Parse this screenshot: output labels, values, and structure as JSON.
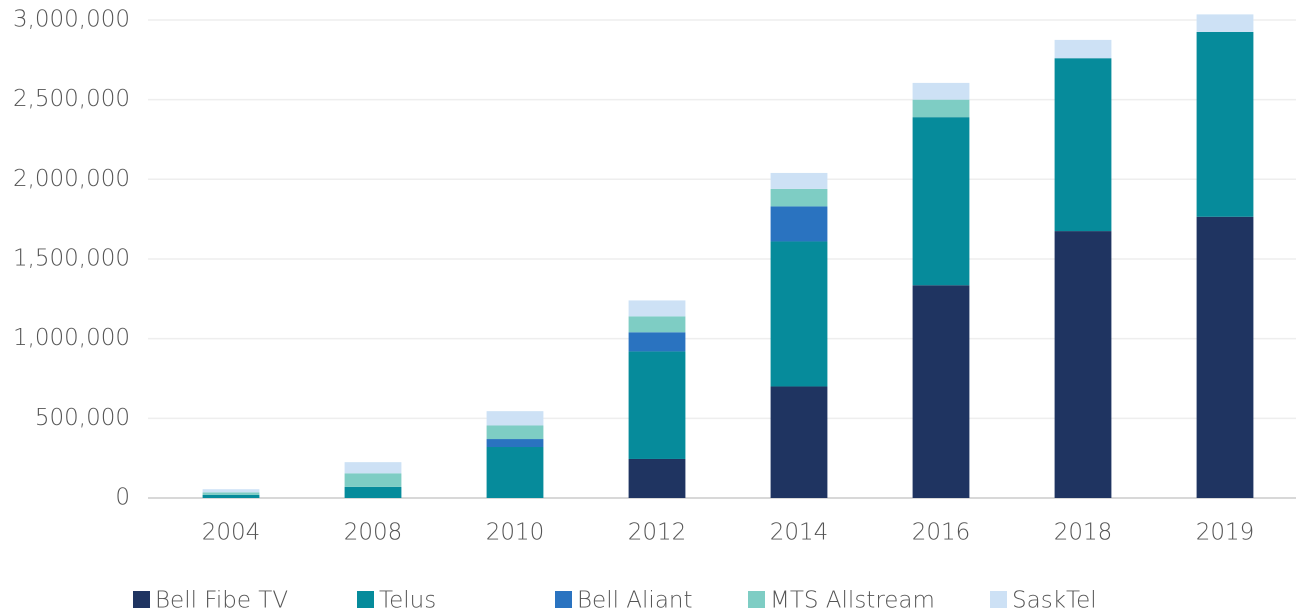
{
  "chart_data": {
    "type": "stacked_bar",
    "categories": [
      "2004",
      "2008",
      "2010",
      "2012",
      "2014",
      "2016",
      "2018",
      "2019"
    ],
    "series": [
      {
        "name": "Bell Fibe TV",
        "color": "#1f3461",
        "values": [
          0,
          0,
          0,
          245000,
          700000,
          1335000,
          1675000,
          1765000
        ]
      },
      {
        "name": "Telus",
        "color": "#068b9b",
        "values": [
          20000,
          70000,
          320000,
          675000,
          910000,
          1055000,
          1085000,
          1160000
        ]
      },
      {
        "name": "Bell Aliant",
        "color": "#2a73c0",
        "values": [
          0,
          0,
          50000,
          120000,
          220000,
          0,
          0,
          0
        ]
      },
      {
        "name": "MTS Allstream",
        "color": "#7ecdc4",
        "values": [
          15000,
          85000,
          85000,
          100000,
          110000,
          110000,
          0,
          0
        ]
      },
      {
        "name": "SaskTel",
        "color": "#cde1f5",
        "values": [
          20000,
          70000,
          90000,
          100000,
          100000,
          105000,
          115000,
          110000
        ]
      }
    ],
    "ylim": [
      0,
      3050000
    ],
    "yticks": [
      {
        "value": 0,
        "label": "0"
      },
      {
        "value": 500000,
        "label": "500,000"
      },
      {
        "value": 1000000,
        "label": "1,000,000"
      },
      {
        "value": 1500000,
        "label": "1,500,000"
      },
      {
        "value": 2000000,
        "label": "2,000,000"
      },
      {
        "value": 2500000,
        "label": "2,500,000"
      },
      {
        "value": 3000000,
        "label": "3,000,000"
      }
    ],
    "grid": true,
    "legend": "bottom"
  }
}
